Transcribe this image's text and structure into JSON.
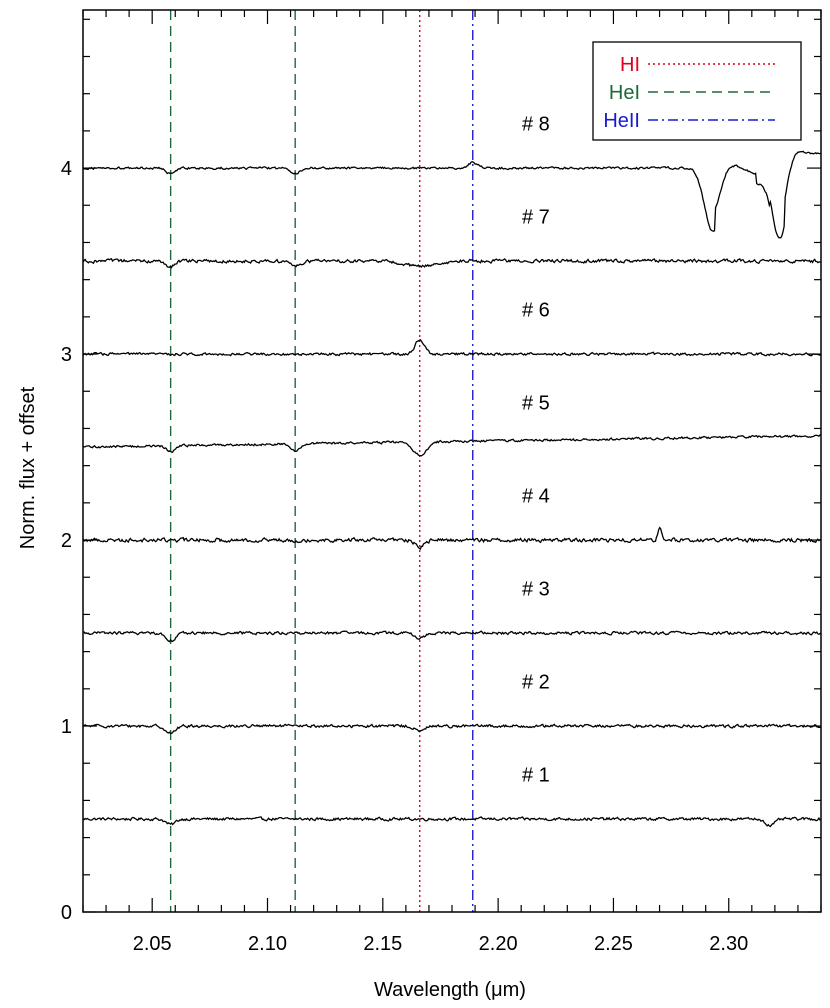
{
  "chart_data": {
    "type": "line",
    "xlabel": "Wavelength (μm)",
    "ylabel": "Norm. flux + offset",
    "xlim": [
      2.02,
      2.34
    ],
    "ylim": [
      0,
      4.85
    ],
    "x_ticks": [
      2.05,
      2.1,
      2.15,
      2.2,
      2.25,
      2.3
    ],
    "x_tick_labels": [
      "2.05",
      "2.10",
      "2.15",
      "2.20",
      "2.25",
      "2.30"
    ],
    "y_ticks": [
      0,
      1,
      2,
      3,
      4
    ],
    "y_tick_labels": [
      "0",
      "1",
      "2",
      "3",
      "4"
    ],
    "legend": {
      "position": "top-right",
      "entries": [
        {
          "label": "HI",
          "color": "#e0001a",
          "style": "dotted"
        },
        {
          "label": "HeI",
          "color": "#1a6b3a",
          "style": "dashed"
        },
        {
          "label": "HeII",
          "color": "#1a1ad0",
          "style": "dash-dot"
        }
      ]
    },
    "reference_lines": [
      {
        "name": "HeI",
        "x": 2.058,
        "color": "#1a6b3a",
        "style": "dashed"
      },
      {
        "name": "HeI",
        "x": 2.112,
        "color": "#1a6b3a",
        "style": "dashed"
      },
      {
        "name": "HI",
        "x": 2.166,
        "color": "#e0001a",
        "style": "dotted"
      },
      {
        "name": "HeII",
        "x": 2.189,
        "color": "#1a1ad0",
        "style": "dash-dot"
      }
    ],
    "series": [
      {
        "name": "# 1",
        "offset": 0.5,
        "noise": 0.012,
        "features": [
          {
            "x": 2.058,
            "depth": -0.03,
            "width": 0.002
          },
          {
            "x": 2.318,
            "depth": -0.035,
            "width": 0.002
          }
        ]
      },
      {
        "name": "# 2",
        "offset": 1.0,
        "noise": 0.012,
        "features": [
          {
            "x": 2.058,
            "depth": -0.04,
            "width": 0.002
          },
          {
            "x": 2.166,
            "depth": -0.03,
            "width": 0.002
          }
        ]
      },
      {
        "name": "# 3",
        "offset": 1.5,
        "noise": 0.012,
        "features": [
          {
            "x": 2.058,
            "depth": -0.04,
            "width": 0.002
          },
          {
            "x": 2.166,
            "depth": -0.03,
            "width": 0.002
          }
        ]
      },
      {
        "name": "# 4",
        "offset": 2.0,
        "noise": 0.016,
        "features": [
          {
            "x": 2.166,
            "depth": -0.04,
            "width": 0.002
          },
          {
            "x": 2.27,
            "depth": 0.06,
            "width": 0.0008
          }
        ]
      },
      {
        "name": "# 5",
        "offset": 2.5,
        "noise": 0.01,
        "slope": 0.06,
        "features": [
          {
            "x": 2.058,
            "depth": -0.03,
            "width": 0.002
          },
          {
            "x": 2.112,
            "depth": -0.04,
            "width": 0.002
          },
          {
            "x": 2.166,
            "depth": -0.07,
            "width": 0.003
          }
        ]
      },
      {
        "name": "# 6",
        "offset": 3.0,
        "noise": 0.011,
        "features": [
          {
            "x": 2.166,
            "depth": 0.08,
            "width": 0.002
          }
        ]
      },
      {
        "name": "# 7",
        "offset": 3.5,
        "noise": 0.014,
        "features": [
          {
            "x": 2.058,
            "depth": -0.03,
            "width": 0.002
          },
          {
            "x": 2.112,
            "depth": -0.03,
            "width": 0.002
          },
          {
            "x": 2.166,
            "depth": -0.03,
            "width": 0.006
          }
        ]
      },
      {
        "name": "# 8",
        "offset": 4.0,
        "noise": 0.009,
        "features": [
          {
            "x": 2.058,
            "depth": -0.03,
            "width": 0.002
          },
          {
            "x": 2.112,
            "depth": -0.03,
            "width": 0.002
          },
          {
            "x": 2.189,
            "depth": 0.03,
            "width": 0.002
          },
          {
            "x": 2.293,
            "depth": -0.3,
            "width": 0.0035
          },
          {
            "x": 2.322,
            "depth": -0.35,
            "width": 0.003
          }
        ],
        "extra": "co_bandheads"
      }
    ]
  }
}
